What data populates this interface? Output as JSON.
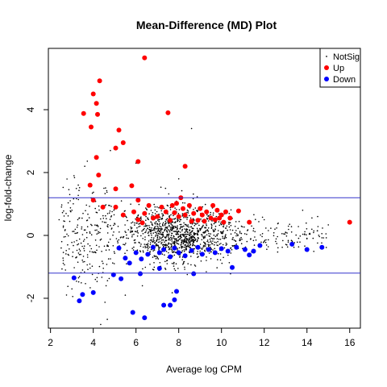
{
  "chart_data": {
    "type": "scatter",
    "title": "Mean-Difference (MD) Plot",
    "xlabel": "Average log CPM",
    "ylabel": "log-fold-change",
    "xlim": [
      1.9,
      16.5
    ],
    "ylim": [
      -2.95,
      5.95
    ],
    "x_ticks": [
      2,
      4,
      6,
      8,
      10,
      12,
      14,
      16
    ],
    "y_ticks": [
      -2,
      0,
      2,
      4
    ],
    "hlines": [
      1.2,
      -1.2
    ],
    "hline_color": "#3333cc",
    "grid": false,
    "legend_position": "top-right",
    "legend": [
      {
        "label": "NotSig",
        "color": "#000000"
      },
      {
        "label": "Up",
        "color": "#ff0000"
      },
      {
        "label": "Down",
        "color": "#0000ff"
      }
    ],
    "series": [
      {
        "name": "Up",
        "color": "#ff0000",
        "points": [
          [
            6.4,
            5.65
          ],
          [
            4.3,
            4.92
          ],
          [
            4.0,
            4.5
          ],
          [
            4.15,
            4.2
          ],
          [
            3.55,
            3.88
          ],
          [
            4.2,
            3.85
          ],
          [
            7.5,
            3.9
          ],
          [
            3.9,
            3.45
          ],
          [
            5.2,
            3.35
          ],
          [
            5.05,
            2.78
          ],
          [
            5.4,
            2.95
          ],
          [
            4.15,
            2.48
          ],
          [
            6.1,
            2.35
          ],
          [
            8.3,
            2.2
          ],
          [
            4.25,
            1.92
          ],
          [
            3.85,
            1.6
          ],
          [
            5.05,
            1.48
          ],
          [
            5.8,
            1.58
          ],
          [
            6.1,
            1.12
          ],
          [
            4.0,
            1.12
          ],
          [
            4.45,
            0.9
          ],
          [
            5.05,
            0.9
          ],
          [
            5.4,
            0.65
          ],
          [
            5.9,
            0.75
          ],
          [
            6.1,
            0.5
          ],
          [
            6.4,
            0.7
          ],
          [
            6.6,
            0.95
          ],
          [
            6.8,
            0.55
          ],
          [
            7.0,
            0.6
          ],
          [
            7.2,
            0.9
          ],
          [
            7.4,
            0.75
          ],
          [
            7.6,
            0.48
          ],
          [
            7.7,
            0.95
          ],
          [
            7.8,
            0.72
          ],
          [
            7.9,
            1.02
          ],
          [
            8.0,
            0.6
          ],
          [
            8.1,
            1.2
          ],
          [
            8.2,
            0.85
          ],
          [
            8.3,
            0.65
          ],
          [
            8.5,
            0.95
          ],
          [
            8.6,
            0.45
          ],
          [
            8.7,
            0.7
          ],
          [
            8.9,
            0.48
          ],
          [
            9.0,
            0.85
          ],
          [
            9.1,
            0.65
          ],
          [
            9.2,
            0.45
          ],
          [
            9.3,
            0.75
          ],
          [
            9.5,
            0.55
          ],
          [
            9.6,
            0.95
          ],
          [
            9.7,
            0.5
          ],
          [
            9.8,
            0.8
          ],
          [
            9.9,
            0.55
          ],
          [
            10.0,
            0.65
          ],
          [
            10.1,
            0.42
          ],
          [
            10.2,
            0.75
          ],
          [
            10.4,
            0.55
          ],
          [
            10.8,
            0.78
          ],
          [
            11.3,
            0.42
          ],
          [
            16.0,
            0.42
          ],
          [
            6.3,
            0.4
          ]
        ]
      },
      {
        "name": "Down",
        "color": "#0000ff",
        "points": [
          [
            6.4,
            -2.62
          ],
          [
            5.85,
            -2.45
          ],
          [
            7.3,
            -2.22
          ],
          [
            7.6,
            -2.22
          ],
          [
            7.8,
            -2.05
          ],
          [
            7.9,
            -1.78
          ],
          [
            3.5,
            -1.88
          ],
          [
            4.0,
            -1.82
          ],
          [
            3.35,
            -2.08
          ],
          [
            3.1,
            -1.35
          ],
          [
            5.3,
            -1.38
          ],
          [
            4.95,
            -1.25
          ],
          [
            6.2,
            -1.22
          ],
          [
            7.1,
            -1.05
          ],
          [
            8.7,
            -1.22
          ],
          [
            10.5,
            -1.02
          ],
          [
            5.5,
            -0.72
          ],
          [
            5.7,
            -0.88
          ],
          [
            6.0,
            -0.55
          ],
          [
            6.25,
            -0.75
          ],
          [
            6.55,
            -0.6
          ],
          [
            6.8,
            -0.38
          ],
          [
            7.1,
            -0.55
          ],
          [
            7.3,
            -0.45
          ],
          [
            7.6,
            -0.68
          ],
          [
            7.8,
            -0.4
          ],
          [
            8.0,
            -0.55
          ],
          [
            8.3,
            -0.65
          ],
          [
            8.6,
            -0.48
          ],
          [
            8.9,
            -0.38
          ],
          [
            9.1,
            -0.6
          ],
          [
            9.4,
            -0.45
          ],
          [
            9.7,
            -0.55
          ],
          [
            10.0,
            -0.42
          ],
          [
            10.3,
            -0.5
          ],
          [
            10.7,
            -0.38
          ],
          [
            11.1,
            -0.45
          ],
          [
            11.3,
            -0.62
          ],
          [
            11.5,
            -0.5
          ],
          [
            11.8,
            -0.32
          ],
          [
            13.3,
            -0.28
          ],
          [
            14.0,
            -0.45
          ],
          [
            14.7,
            -0.38
          ],
          [
            5.2,
            -0.4
          ]
        ]
      },
      {
        "name": "NotSig",
        "color": "#000000",
        "count": 1500,
        "seed": 7,
        "x_range": [
          2.5,
          15.0
        ],
        "y_spread": 0.45,
        "center_x": 8.0,
        "outliers": [
          [
            8.6,
            3.4
          ],
          [
            4.8,
            2.7
          ],
          [
            3.6,
            2.2
          ],
          [
            6.0,
            2.3
          ],
          [
            3.1,
            1.9
          ],
          [
            8.0,
            1.8
          ],
          [
            3.3,
            1.6
          ],
          [
            4.5,
            1.5
          ],
          [
            2.9,
            1.3
          ],
          [
            3.0,
            0.8
          ],
          [
            2.6,
            0.3
          ],
          [
            2.4,
            0.5
          ],
          [
            2.8,
            -0.3
          ],
          [
            3.2,
            -0.7
          ],
          [
            2.5,
            -0.4
          ],
          [
            3.5,
            -1.1
          ],
          [
            4.1,
            -1.4
          ],
          [
            3.0,
            -1.7
          ],
          [
            2.7,
            -1.1
          ],
          [
            4.6,
            -1.6
          ],
          [
            5.5,
            -1.9
          ],
          [
            6.3,
            -1.6
          ],
          [
            12.0,
            0.5
          ],
          [
            13.8,
            0.8
          ],
          [
            14.5,
            0.6
          ],
          [
            12.5,
            0.2
          ],
          [
            13.0,
            0.1
          ]
        ]
      }
    ]
  }
}
